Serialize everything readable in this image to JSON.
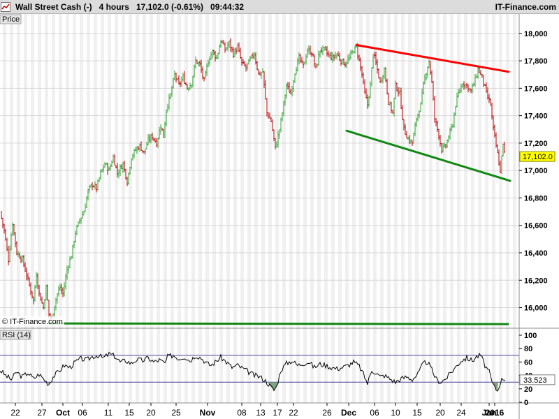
{
  "header": {
    "title": "Wall Street Cash (-)",
    "timeframe": "4 hours",
    "last": "17,102.0",
    "change": "(-0.61%)",
    "time": "09:44:32",
    "brand": "IT-Finance.com"
  },
  "colors": {
    "up": "#2ca02c",
    "down": "#b40000",
    "resistance": "#ff0000",
    "support": "#118811",
    "rsi_line": "#000000",
    "rsi_band": "#4b3f9e",
    "rsi_fill": "#6a9a6a"
  },
  "chart_data": [
    {
      "type": "candlestick",
      "panel_label": "Price",
      "watermark": "© IT-Finance.com",
      "ylim": [
        15850,
        18050
      ],
      "y_ticks": [
        "18,000",
        "17,800",
        "17,600",
        "17,400",
        "17,200",
        "17,000",
        "16,800",
        "16,600",
        "16,400",
        "16,200",
        "16,000"
      ],
      "last_price": "17,102.0",
      "x_ticks": [
        "22",
        "27",
        "Oct",
        "06",
        "11",
        "15",
        "20",
        "25",
        "Nov",
        "08",
        "13",
        "17",
        "22",
        "26",
        "Dec",
        "06",
        "10",
        "15",
        "20",
        "24",
        "Jan",
        "2016"
      ],
      "x_tick_bold": [
        false,
        false,
        true,
        false,
        false,
        false,
        false,
        false,
        true,
        false,
        false,
        false,
        false,
        false,
        true,
        false,
        false,
        false,
        false,
        false,
        true,
        true
      ],
      "close_path": [
        [
          0,
          16700
        ],
        [
          6,
          16560
        ],
        [
          12,
          16350
        ],
        [
          18,
          16620
        ],
        [
          24,
          16400
        ],
        [
          32,
          16350
        ],
        [
          40,
          16200
        ],
        [
          48,
          16050
        ],
        [
          52,
          16250
        ],
        [
          56,
          16100
        ],
        [
          62,
          16000
        ],
        [
          66,
          16150
        ],
        [
          70,
          15950
        ],
        [
          74,
          15920
        ],
        [
          78,
          16020
        ],
        [
          82,
          16100
        ],
        [
          86,
          16150
        ],
        [
          90,
          16100
        ],
        [
          96,
          16280
        ],
        [
          102,
          16380
        ],
        [
          108,
          16550
        ],
        [
          114,
          16640
        ],
        [
          120,
          16700
        ],
        [
          126,
          16850
        ],
        [
          132,
          16900
        ],
        [
          138,
          16870
        ],
        [
          144,
          16980
        ],
        [
          150,
          17050
        ],
        [
          156,
          17000
        ],
        [
          162,
          17100
        ],
        [
          168,
          16980
        ],
        [
          176,
          17050
        ],
        [
          182,
          16920
        ],
        [
          188,
          17100
        ],
        [
          194,
          17150
        ],
        [
          200,
          17180
        ],
        [
          206,
          17130
        ],
        [
          212,
          17220
        ],
        [
          218,
          17250
        ],
        [
          224,
          17200
        ],
        [
          230,
          17330
        ],
        [
          234,
          17250
        ],
        [
          238,
          17450
        ],
        [
          244,
          17550
        ],
        [
          250,
          17700
        ],
        [
          256,
          17620
        ],
        [
          262,
          17680
        ],
        [
          268,
          17600
        ],
        [
          274,
          17640
        ],
        [
          280,
          17800
        ],
        [
          286,
          17770
        ],
        [
          292,
          17650
        ],
        [
          298,
          17800
        ],
        [
          304,
          17870
        ],
        [
          310,
          17820
        ],
        [
          316,
          17950
        ],
        [
          322,
          17880
        ],
        [
          328,
          17930
        ],
        [
          334,
          17850
        ],
        [
          340,
          17900
        ],
        [
          346,
          17780
        ],
        [
          352,
          17750
        ],
        [
          358,
          17810
        ],
        [
          364,
          17850
        ],
        [
          370,
          17700
        ],
        [
          376,
          17720
        ],
        [
          382,
          17420
        ],
        [
          388,
          17360
        ],
        [
          394,
          17160
        ],
        [
          400,
          17300
        ],
        [
          404,
          17420
        ],
        [
          410,
          17620
        ],
        [
          416,
          17560
        ],
        [
          422,
          17720
        ],
        [
          428,
          17820
        ],
        [
          434,
          17760
        ],
        [
          440,
          17880
        ],
        [
          446,
          17860
        ],
        [
          452,
          17740
        ],
        [
          458,
          17880
        ],
        [
          464,
          17880
        ],
        [
          470,
          17840
        ],
        [
          476,
          17820
        ],
        [
          482,
          17850
        ],
        [
          488,
          17800
        ],
        [
          494,
          17780
        ],
        [
          500,
          17820
        ],
        [
          506,
          17880
        ],
        [
          510,
          17900
        ],
        [
          514,
          17800
        ],
        [
          518,
          17700
        ],
        [
          522,
          17560
        ],
        [
          526,
          17480
        ],
        [
          530,
          17620
        ],
        [
          534,
          17860
        ],
        [
          538,
          17780
        ],
        [
          544,
          17640
        ],
        [
          550,
          17740
        ],
        [
          556,
          17500
        ],
        [
          562,
          17420
        ],
        [
          566,
          17620
        ],
        [
          572,
          17560
        ],
        [
          578,
          17300
        ],
        [
          584,
          17230
        ],
        [
          590,
          17200
        ],
        [
          596,
          17380
        ],
        [
          602,
          17480
        ],
        [
          606,
          17620
        ],
        [
          610,
          17720
        ],
        [
          614,
          17800
        ],
        [
          618,
          17640
        ],
        [
          622,
          17380
        ],
        [
          628,
          17260
        ],
        [
          632,
          17150
        ],
        [
          638,
          17180
        ],
        [
          644,
          17280
        ],
        [
          648,
          17340
        ],
        [
          652,
          17480
        ],
        [
          656,
          17560
        ],
        [
          662,
          17640
        ],
        [
          668,
          17620
        ],
        [
          674,
          17580
        ],
        [
          680,
          17660
        ],
        [
          684,
          17740
        ],
        [
          690,
          17680
        ],
        [
          696,
          17560
        ],
        [
          702,
          17480
        ],
        [
          706,
          17300
        ],
        [
          710,
          17180
        ],
        [
          714,
          17060
        ],
        [
          716,
          16980
        ],
        [
          718,
          17120
        ],
        [
          720,
          17180
        ],
        [
          723,
          17102
        ]
      ],
      "annotations": [
        {
          "name": "resistance-trendline",
          "x1": 510,
          "y1": 17915,
          "x2": 728,
          "y2": 17720
        },
        {
          "name": "upper-support-trendline",
          "x1": 496,
          "y1": 17290,
          "x2": 730,
          "y2": 16925
        },
        {
          "name": "lower-support-line",
          "x1": 70,
          "y1": 15885,
          "x2": 727,
          "y2": 15880
        }
      ]
    },
    {
      "type": "line",
      "panel_label": "RSI (14)",
      "ylim": [
        0,
        100
      ],
      "y_ticks": [
        "100",
        "80",
        "60",
        "40",
        "20",
        "0"
      ],
      "bands": [
        30,
        70
      ],
      "last_value": "33.523",
      "values": [
        [
          0,
          48
        ],
        [
          8,
          40
        ],
        [
          16,
          34
        ],
        [
          24,
          45
        ],
        [
          32,
          38
        ],
        [
          40,
          44
        ],
        [
          48,
          35
        ],
        [
          56,
          42
        ],
        [
          64,
          33
        ],
        [
          70,
          27
        ],
        [
          76,
          38
        ],
        [
          84,
          46
        ],
        [
          92,
          55
        ],
        [
          100,
          52
        ],
        [
          108,
          60
        ],
        [
          116,
          65
        ],
        [
          124,
          63
        ],
        [
          132,
          68
        ],
        [
          140,
          70
        ],
        [
          148,
          66
        ],
        [
          156,
          72
        ],
        [
          164,
          69
        ],
        [
          172,
          60
        ],
        [
          180,
          62
        ],
        [
          188,
          58
        ],
        [
          196,
          64
        ],
        [
          204,
          62
        ],
        [
          212,
          66
        ],
        [
          220,
          60
        ],
        [
          228,
          63
        ],
        [
          236,
          58
        ],
        [
          240,
          68
        ],
        [
          248,
          70
        ],
        [
          256,
          65
        ],
        [
          264,
          68
        ],
        [
          272,
          62
        ],
        [
          280,
          70
        ],
        [
          288,
          66
        ],
        [
          296,
          58
        ],
        [
          302,
          55
        ],
        [
          308,
          60
        ],
        [
          316,
          67
        ],
        [
          324,
          60
        ],
        [
          332,
          52
        ],
        [
          340,
          55
        ],
        [
          348,
          50
        ],
        [
          356,
          45
        ],
        [
          364,
          40
        ],
        [
          372,
          38
        ],
        [
          380,
          32
        ],
        [
          386,
          25
        ],
        [
          392,
          18
        ],
        [
          396,
          24
        ],
        [
          402,
          48
        ],
        [
          410,
          58
        ],
        [
          418,
          62
        ],
        [
          426,
          55
        ],
        [
          434,
          58
        ],
        [
          442,
          60
        ],
        [
          450,
          52
        ],
        [
          458,
          57
        ],
        [
          466,
          55
        ],
        [
          474,
          52
        ],
        [
          482,
          50
        ],
        [
          490,
          52
        ],
        [
          498,
          55
        ],
        [
          506,
          60
        ],
        [
          514,
          54
        ],
        [
          520,
          42
        ],
        [
          526,
          28
        ],
        [
          532,
          48
        ],
        [
          538,
          44
        ],
        [
          544,
          38
        ],
        [
          550,
          40
        ],
        [
          558,
          35
        ],
        [
          566,
          30
        ],
        [
          574,
          35
        ],
        [
          582,
          38
        ],
        [
          590,
          34
        ],
        [
          598,
          42
        ],
        [
          606,
          58
        ],
        [
          612,
          60
        ],
        [
          618,
          48
        ],
        [
          624,
          35
        ],
        [
          630,
          30
        ],
        [
          638,
          35
        ],
        [
          646,
          45
        ],
        [
          654,
          55
        ],
        [
          660,
          62
        ],
        [
          668,
          66
        ],
        [
          676,
          62
        ],
        [
          682,
          68
        ],
        [
          688,
          70
        ],
        [
          694,
          55
        ],
        [
          700,
          45
        ],
        [
          704,
          30
        ],
        [
          708,
          22
        ],
        [
          712,
          17
        ],
        [
          716,
          30
        ],
        [
          720,
          36
        ],
        [
          723,
          33.5
        ]
      ]
    }
  ]
}
